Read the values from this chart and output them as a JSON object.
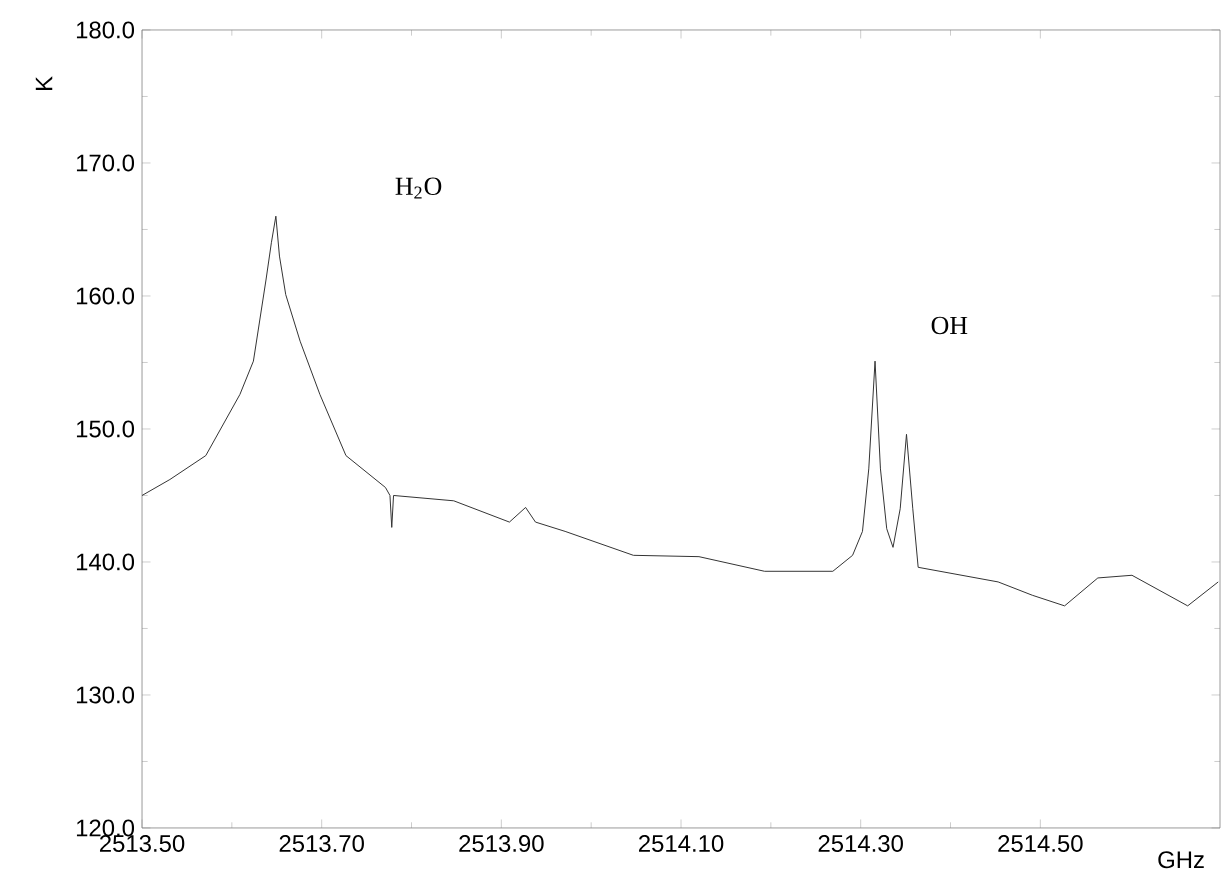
{
  "chart_data": {
    "type": "line",
    "xlabel": "GHz",
    "ylabel": "K",
    "x": [
      2513.5,
      2513.531,
      2513.571,
      2513.609,
      2513.624,
      2513.638,
      2513.644,
      2513.649,
      2513.653,
      2513.66,
      2513.676,
      2513.698,
      2513.727,
      2513.771,
      2513.776,
      2513.778,
      2513.78,
      2513.847,
      2513.909,
      2513.927,
      2513.938,
      2513.971,
      2514.047,
      2514.12,
      2514.193,
      2514.269,
      2514.291,
      2514.302,
      2514.309,
      2514.316,
      2514.322,
      2514.329,
      2514.336,
      2514.344,
      2514.351,
      2514.358,
      2514.364,
      2514.453,
      2514.491,
      2514.527,
      2514.564,
      2514.602,
      2514.664,
      2514.698
    ],
    "series": [
      {
        "color": "#333333",
        "values": [
          145.0,
          146.2,
          148.0,
          152.6,
          155.1,
          161.2,
          164.0,
          166.0,
          163.0,
          160.1,
          156.6,
          152.6,
          148.0,
          145.6,
          145.0,
          142.6,
          145.0,
          144.6,
          143.0,
          144.1,
          143.0,
          142.3,
          140.5,
          140.4,
          139.3,
          139.3,
          140.5,
          142.3,
          147.0,
          155.1,
          147.0,
          142.5,
          141.1,
          144.0,
          149.6,
          144.0,
          139.6,
          138.5,
          137.5,
          136.7,
          138.8,
          139.0,
          136.7,
          138.5
        ]
      }
    ],
    "xlim": [
      2513.5,
      2514.7
    ],
    "xticks": [
      {
        "value": 2513.5,
        "label": "2513.50"
      },
      {
        "value": 2513.7,
        "label": "2513.70"
      },
      {
        "value": 2513.9,
        "label": "2513.90"
      },
      {
        "value": 2514.1,
        "label": "2514.10"
      },
      {
        "value": 2514.3,
        "label": "2514.30"
      },
      {
        "value": 2514.5,
        "label": "2514.50"
      }
    ],
    "ylim": [
      120,
      180
    ],
    "yticks": [
      {
        "value": 120,
        "label": "120.0"
      },
      {
        "value": 130,
        "label": "130.0"
      },
      {
        "value": 140,
        "label": "140.0"
      },
      {
        "value": 150,
        "label": "150.0"
      },
      {
        "value": 160,
        "label": "160.0"
      },
      {
        "value": 170,
        "label": "170.0"
      },
      {
        "value": 180,
        "label": "180.0"
      }
    ],
    "annotations": [
      "H$_{2}$O",
      "OH"
    ],
    "marker": "none",
    "line_style": "solid"
  }
}
